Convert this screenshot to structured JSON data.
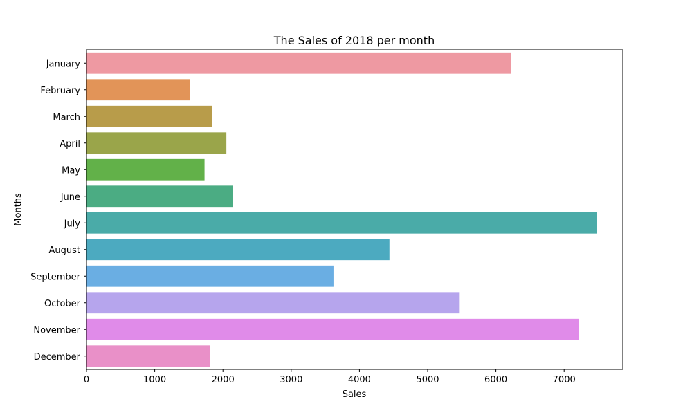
{
  "chart_data": {
    "type": "bar",
    "orientation": "horizontal",
    "title": "The Sales of 2018 per month",
    "xlabel": "Sales",
    "ylabel": "Months",
    "categories": [
      "January",
      "February",
      "March",
      "April",
      "May",
      "June",
      "July",
      "August",
      "September",
      "October",
      "November",
      "December"
    ],
    "values": [
      6220,
      1520,
      1840,
      2050,
      1730,
      2140,
      7480,
      4440,
      3620,
      5470,
      7220,
      1810
    ],
    "colors": [
      "#ee99a2",
      "#e29458",
      "#b89c4a",
      "#9aa54a",
      "#62b149",
      "#4bac83",
      "#4aaba8",
      "#4caac0",
      "#6aaee3",
      "#b6a5ed",
      "#e08be9",
      "#e990c8"
    ],
    "xlim": [
      0,
      7860
    ],
    "xticks": [
      0,
      1000,
      2000,
      3000,
      4000,
      5000,
      6000,
      7000
    ],
    "grid": false,
    "legend": "none"
  }
}
